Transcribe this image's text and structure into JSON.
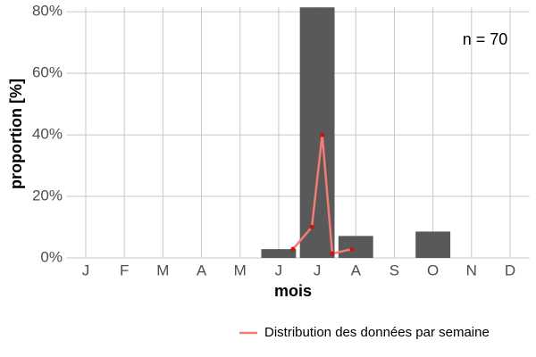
{
  "chart_data": {
    "type": "bar",
    "categories": [
      "J",
      "F",
      "M",
      "A",
      "M",
      "J",
      "J",
      "A",
      "S",
      "O",
      "N",
      "D"
    ],
    "values": [
      0,
      0,
      0,
      0,
      0,
      2.86,
      81.43,
      7.14,
      0,
      8.57,
      0,
      0
    ],
    "color": "#595959",
    "xlabel": "mois",
    "ylabel": "proportion [%]",
    "ylim": [
      0,
      81.5
    ],
    "yticks": [
      {
        "value": 0,
        "label": "0%"
      },
      {
        "value": 20,
        "label": "20%"
      },
      {
        "value": 40,
        "label": "40%"
      },
      {
        "value": 60,
        "label": "60%"
      },
      {
        "value": 80,
        "label": "80%"
      }
    ],
    "xlim": [
      0.5,
      12.5
    ],
    "grid": true,
    "annotation": "n = 70",
    "legend": "bottom-right",
    "series": [
      {
        "name": "Distribution des données par semaine",
        "color": "#f07c74",
        "point_color": "#cc1111",
        "x": [
          6.37,
          6.86,
          7.13,
          7.39,
          7.9
        ],
        "values": [
          2.86,
          10,
          40,
          1.43,
          2.86
        ]
      }
    ]
  }
}
